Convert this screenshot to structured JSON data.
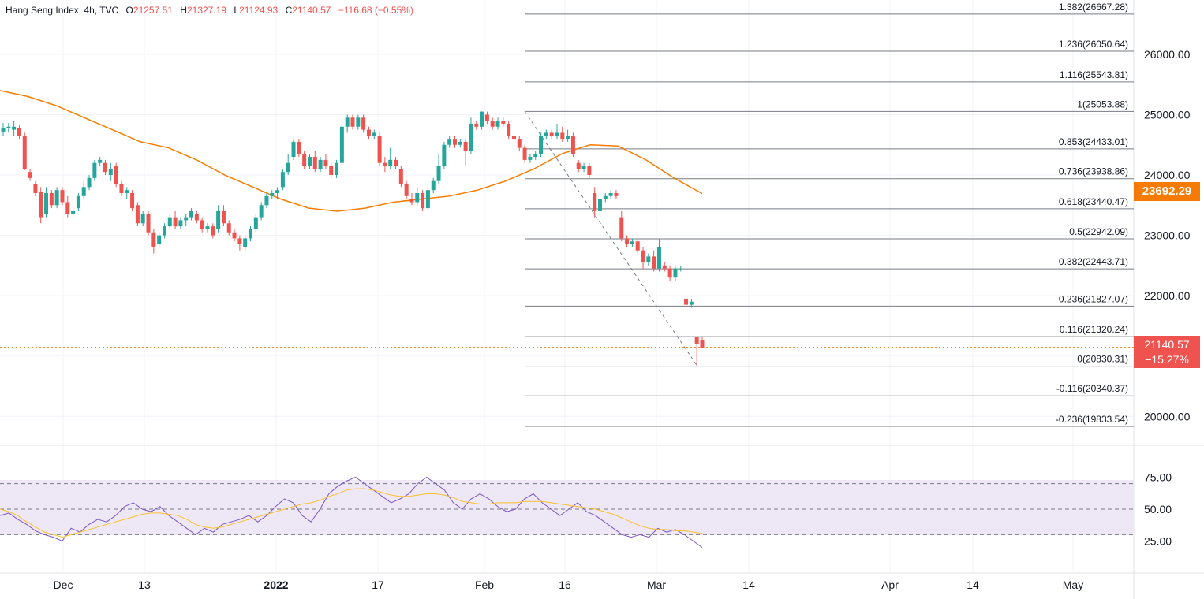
{
  "header": {
    "symbol": "Hang Seng Index, 4h, TVC",
    "o_label": "O",
    "o_value": "21257.51",
    "h_label": "H",
    "h_value": "21327.19",
    "l_label": "L",
    "l_value": "21124.93",
    "c_label": "C",
    "c_value": "21140.57",
    "change": "−116.68 (−0.55%)"
  },
  "tags": {
    "ma_value": "23692.29",
    "last_price": "21140.57",
    "last_change": "−15.27%"
  },
  "colors": {
    "up": "#26a69a",
    "down": "#ef5350",
    "ma": "#f57c00",
    "rsi": "#7e57c2",
    "rsi_ma": "#fbc02d",
    "rsi_band": "#ede7f6",
    "fib_line": "#787b86",
    "last_price_line": "#f57c00"
  },
  "chart_data": [
    {
      "type": "candlestick",
      "title": "Hang Seng Index, 4h, TVC",
      "y_ticks": [
        20000,
        21000,
        22000,
        23000,
        24000,
        25000,
        26000
      ],
      "y_tick_labels": [
        "20000.00",
        "21000.00",
        "22000.00",
        "23000.00",
        "24000.00",
        "25000.00",
        "26000.00"
      ],
      "ylim": [
        19520,
        26900
      ],
      "x_tick_labels": [
        "Dec",
        "13",
        "2022",
        "17",
        "Feb",
        "16",
        "Mar",
        "14",
        "Apr",
        "14",
        "May"
      ],
      "last_price": 21140.57,
      "moving_average_label": "23692.29",
      "fibonacci": [
        {
          "label": "1.382(26667.28)",
          "value": 26667.28
        },
        {
          "label": "1.236(26050.64)",
          "value": 26050.64
        },
        {
          "label": "1.116(25543.81)",
          "value": 25543.81
        },
        {
          "label": "1(25053.88)",
          "value": 25053.88
        },
        {
          "label": "0.853(24433.01)",
          "value": 24433.01
        },
        {
          "label": "0.736(23938.86)",
          "value": 23938.86
        },
        {
          "label": "0.618(23440.47)",
          "value": 23440.47
        },
        {
          "label": "0.5(22942.09)",
          "value": 22942.09
        },
        {
          "label": "0.382(22443.71)",
          "value": 22443.71
        },
        {
          "label": "0.236(21827.07)",
          "value": 21827.07
        },
        {
          "label": "0.116(21320.24)",
          "value": 21320.24
        },
        {
          "label": "0(20830.31)",
          "value": 20830.31
        },
        {
          "label": "-0.116(20340.37)",
          "value": 20340.37
        },
        {
          "label": "-0.236(19833.54)",
          "value": 19833.54
        }
      ],
      "fib_trend": {
        "from": 25053.88,
        "to": 20830.31
      },
      "moving_average": [
        25400,
        25300,
        25150,
        24950,
        24750,
        24550,
        24450,
        24250,
        24000,
        23800,
        23600,
        23450,
        23400,
        23450,
        23550,
        23600,
        23650,
        23750,
        23900,
        24100,
        24350,
        24500,
        24480,
        24250,
        23950,
        23692.29
      ],
      "candles": [
        [
          24720,
          24780,
          24640,
          24860
        ],
        [
          24780,
          24800,
          24700,
          24860
        ],
        [
          24750,
          24800,
          24650,
          24900
        ],
        [
          24780,
          24650,
          24600,
          24820
        ],
        [
          24650,
          24100,
          24080,
          24700
        ],
        [
          24050,
          23950,
          23900,
          24100
        ],
        [
          23850,
          23700,
          23650,
          23900
        ],
        [
          23720,
          23300,
          23200,
          23800
        ],
        [
          23350,
          23700,
          23300,
          23800
        ],
        [
          23700,
          23500,
          23450,
          23750
        ],
        [
          23500,
          23750,
          23450,
          23800
        ],
        [
          23750,
          23550,
          23500,
          23800
        ],
        [
          23550,
          23350,
          23300,
          23650
        ],
        [
          23350,
          23400,
          23300,
          23500
        ],
        [
          23450,
          23650,
          23400,
          23700
        ],
        [
          23650,
          23800,
          23600,
          23900
        ],
        [
          23800,
          23950,
          23750,
          24000
        ],
        [
          23950,
          24200,
          23900,
          24250
        ],
        [
          24200,
          24250,
          24150,
          24300
        ],
        [
          24200,
          24050,
          24000,
          24250
        ],
        [
          24000,
          24100,
          23900,
          24200
        ],
        [
          24150,
          23850,
          23800,
          24200
        ],
        [
          23850,
          23700,
          23650,
          23900
        ],
        [
          23700,
          23750,
          23600,
          23800
        ],
        [
          23700,
          23450,
          23400,
          23750
        ],
        [
          23500,
          23200,
          23150,
          23550
        ],
        [
          23200,
          23350,
          23150,
          23400
        ],
        [
          23350,
          23050,
          23000,
          23400
        ],
        [
          23050,
          22800,
          22700,
          23100
        ],
        [
          22850,
          23000,
          22800,
          23050
        ],
        [
          23000,
          23150,
          22950,
          23200
        ],
        [
          23150,
          23300,
          23100,
          23350
        ],
        [
          23300,
          23150,
          23100,
          23400
        ],
        [
          23150,
          23250,
          23100,
          23300
        ],
        [
          23250,
          23300,
          23150,
          23350
        ],
        [
          23300,
          23400,
          23250,
          23450
        ],
        [
          23350,
          23250,
          23200,
          23400
        ],
        [
          23250,
          23100,
          23050,
          23300
        ],
        [
          23100,
          23150,
          23050,
          23200
        ],
        [
          23150,
          23000,
          22950,
          23200
        ],
        [
          23100,
          23400,
          23050,
          23500
        ],
        [
          23400,
          23200,
          23150,
          23500
        ],
        [
          23200,
          23050,
          23000,
          23250
        ],
        [
          23050,
          22950,
          22900,
          23100
        ],
        [
          22950,
          22850,
          22750,
          23000
        ],
        [
          22800,
          22950,
          22750,
          23000
        ],
        [
          22950,
          23100,
          22900,
          23150
        ],
        [
          23100,
          23300,
          23050,
          23350
        ],
        [
          23300,
          23500,
          23250,
          23550
        ],
        [
          23500,
          23650,
          23450,
          23700
        ],
        [
          23650,
          23700,
          23600,
          23750
        ],
        [
          23700,
          23750,
          23600,
          23800
        ],
        [
          23800,
          24050,
          23750,
          24100
        ],
        [
          24050,
          24200,
          24000,
          24350
        ],
        [
          24300,
          24550,
          24250,
          24600
        ],
        [
          24550,
          24350,
          24300,
          24600
        ],
        [
          24350,
          24150,
          24100,
          24400
        ],
        [
          24150,
          24300,
          24100,
          24350
        ],
        [
          24300,
          24100,
          24050,
          24400
        ],
        [
          24100,
          24250,
          24050,
          24300
        ],
        [
          24250,
          24150,
          24100,
          24350
        ],
        [
          24150,
          24000,
          23950,
          24200
        ],
        [
          24000,
          24200,
          23950,
          24250
        ],
        [
          24200,
          24800,
          24150,
          24850
        ],
        [
          24800,
          24950,
          24700,
          25000
        ],
        [
          24950,
          24800,
          24750,
          25000
        ],
        [
          24800,
          24950,
          24750,
          25000
        ],
        [
          24950,
          24750,
          24700,
          25000
        ],
        [
          24750,
          24650,
          24600,
          24800
        ],
        [
          24650,
          24700,
          24600,
          24750
        ],
        [
          24650,
          24200,
          24150,
          24700
        ],
        [
          24200,
          24150,
          24050,
          24300
        ],
        [
          24150,
          24250,
          24100,
          24450
        ],
        [
          24250,
          24150,
          24100,
          24300
        ],
        [
          24100,
          23850,
          23800,
          24150
        ],
        [
          23850,
          23650,
          23600,
          23900
        ],
        [
          23600,
          23550,
          23500,
          23700
        ],
        [
          23550,
          23700,
          23500,
          23800
        ],
        [
          23700,
          23450,
          23400,
          23750
        ],
        [
          23450,
          23750,
          23400,
          23800
        ],
        [
          23750,
          23900,
          23700,
          23950
        ],
        [
          23900,
          24150,
          23850,
          24350
        ],
        [
          24150,
          24500,
          24100,
          24550
        ],
        [
          24500,
          24600,
          24450,
          24650
        ],
        [
          24600,
          24500,
          24450,
          24650
        ],
        [
          24500,
          24550,
          24450,
          24600
        ],
        [
          24550,
          24400,
          24150,
          24600
        ],
        [
          24400,
          24850,
          24350,
          24950
        ],
        [
          24850,
          24800,
          24750,
          24900
        ],
        [
          24800,
          25050,
          24750,
          25053
        ],
        [
          25000,
          24900,
          24850,
          25050
        ],
        [
          24900,
          24800,
          24750,
          24950
        ],
        [
          24800,
          24900,
          24750,
          24950
        ],
        [
          24900,
          24850,
          24800,
          24950
        ],
        [
          24850,
          24650,
          24600,
          24900
        ],
        [
          24650,
          24600,
          24550,
          24700
        ],
        [
          24600,
          24450,
          24400,
          24650
        ],
        [
          24450,
          24250,
          24200,
          24500
        ],
        [
          24250,
          24300,
          24200,
          24350
        ],
        [
          24300,
          24350,
          24250,
          24400
        ],
        [
          24350,
          24650,
          24300,
          24700
        ],
        [
          24650,
          24700,
          24600,
          24750
        ],
        [
          24700,
          24650,
          24600,
          24750
        ],
        [
          24650,
          24700,
          24600,
          24850
        ],
        [
          24700,
          24600,
          24550,
          24800
        ],
        [
          24600,
          24650,
          24550,
          24750
        ],
        [
          24650,
          24350,
          24300,
          24700
        ],
        [
          24200,
          24100,
          24050,
          24250
        ],
        [
          24100,
          24150,
          24050,
          24200
        ],
        [
          24150,
          24000,
          23950,
          24200
        ],
        [
          23700,
          23400,
          23300,
          23800
        ],
        [
          23400,
          23600,
          23350,
          23650
        ],
        [
          23600,
          23650,
          23550,
          23700
        ],
        [
          23650,
          23700,
          23600,
          23750
        ],
        [
          23700,
          23650,
          23600,
          23750
        ],
        [
          23300,
          22950,
          22900,
          23400
        ],
        [
          22950,
          22850,
          22800,
          23000
        ],
        [
          22850,
          22900,
          22800,
          22950
        ],
        [
          22900,
          22750,
          22700,
          22950
        ],
        [
          22750,
          22550,
          22450,
          22800
        ],
        [
          22550,
          22650,
          22500,
          22700
        ],
        [
          22650,
          22450,
          22400,
          22750
        ],
        [
          22450,
          22800,
          22400,
          22950
        ],
        [
          22500,
          22450,
          22400,
          22550
        ],
        [
          22450,
          22300,
          22250,
          22500
        ],
        [
          22300,
          22450,
          22250,
          22500
        ],
        [
          22450,
          22450,
          22400,
          22500
        ],
        [
          21950,
          21850,
          21800,
          22000
        ],
        [
          21850,
          21900,
          21800,
          21950
        ],
        [
          21320,
          21200,
          20830,
          21320
        ],
        [
          21257,
          21140,
          21125,
          21327
        ]
      ]
    },
    {
      "type": "line",
      "title": "",
      "y_ticks": [
        25,
        50,
        75
      ],
      "y_tick_labels": [
        "25.00",
        "50.00",
        "75.00"
      ],
      "ylim": [
        0,
        100
      ],
      "bands": {
        "upper": 70,
        "middle": 50,
        "lower": 30
      },
      "series": [
        {
          "values": [
            45,
            47,
            42,
            38,
            33,
            30,
            28,
            25,
            35,
            32,
            38,
            42,
            40,
            45,
            52,
            55,
            50,
            48,
            52,
            45,
            40,
            35,
            30,
            35,
            32,
            38,
            40,
            42,
            45,
            40,
            45,
            52,
            58,
            55,
            45,
            40,
            50,
            62,
            68,
            72,
            75,
            70,
            65,
            60,
            55,
            58,
            62,
            70,
            75,
            70,
            65,
            55,
            50,
            58,
            62,
            58,
            52,
            48,
            50,
            58,
            62,
            55,
            50,
            45,
            50,
            55,
            48,
            45,
            40,
            35,
            30,
            28,
            30,
            28,
            35,
            32,
            34,
            30,
            25,
            20
          ]
        },
        {
          "values": [
            50,
            48,
            45,
            40,
            36,
            32,
            30,
            28,
            30,
            32,
            34,
            36,
            38,
            40,
            42,
            44,
            46,
            47,
            47,
            46,
            45,
            42,
            38,
            36,
            35,
            36,
            38,
            40,
            42,
            44,
            46,
            48,
            50,
            52,
            54,
            55,
            57,
            60,
            62,
            65,
            66,
            66,
            65,
            63,
            61,
            60,
            60,
            61,
            62,
            62,
            61,
            59,
            56,
            55,
            54,
            54,
            55,
            55,
            55,
            56,
            56,
            56,
            55,
            54,
            53,
            52,
            51,
            50,
            48,
            46,
            43,
            40,
            37,
            35,
            34,
            34,
            33,
            33,
            32,
            31
          ]
        }
      ]
    }
  ]
}
